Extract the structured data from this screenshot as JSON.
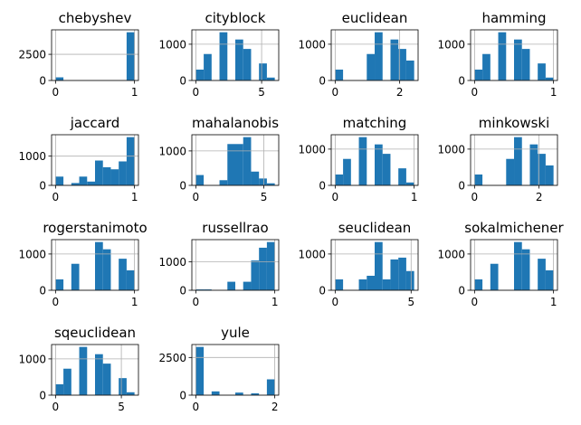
{
  "chart_data": [
    {
      "type": "histogram",
      "title": "chebyshev",
      "bins": [
        0,
        0.1,
        0.2,
        0.3,
        0.4,
        0.5,
        0.6,
        0.7,
        0.8,
        0.9,
        1
      ],
      "values": [
        300,
        0,
        0,
        0,
        0,
        0,
        0,
        0,
        0,
        4610
      ],
      "xlim": [
        -0.05,
        1.05
      ],
      "ylim": [
        0,
        4840.5
      ],
      "xticks": [
        0,
        1
      ],
      "yticks": [
        0,
        2500
      ],
      "grid": true,
      "color": "#1f77b4"
    },
    {
      "type": "histogram",
      "title": "cityblock",
      "bins": [
        0,
        0.6,
        1.2,
        1.8,
        2.4,
        3,
        3.6,
        4.2,
        4.8,
        5.4,
        6
      ],
      "values": [
        300,
        730,
        0,
        1330,
        0,
        1130,
        870,
        0,
        470,
        80
      ],
      "xlim": [
        -0.3,
        6.3
      ],
      "ylim": [
        0,
        1396.5
      ],
      "xticks": [
        0,
        5
      ],
      "yticks": [
        0,
        1000
      ],
      "grid": true,
      "color": "#1f77b4"
    },
    {
      "type": "histogram",
      "title": "euclidean",
      "bins": [
        0,
        0.245,
        0.49,
        0.735,
        0.98,
        1.225,
        1.47,
        1.715,
        1.96,
        2.204,
        2.449
      ],
      "values": [
        300,
        0,
        0,
        0,
        730,
        1330,
        0,
        1130,
        870,
        550
      ],
      "xlim": [
        -0.122,
        2.571
      ],
      "ylim": [
        0,
        1396.5
      ],
      "xticks": [
        0,
        2
      ],
      "yticks": [
        0,
        1000
      ],
      "grid": true,
      "color": "#1f77b4"
    },
    {
      "type": "histogram",
      "title": "hamming",
      "bins": [
        0,
        0.1,
        0.2,
        0.3,
        0.4,
        0.5,
        0.6,
        0.7,
        0.8,
        0.9,
        1
      ],
      "values": [
        300,
        730,
        0,
        1330,
        0,
        1130,
        870,
        0,
        470,
        80
      ],
      "xlim": [
        -0.05,
        1.05
      ],
      "ylim": [
        0,
        1396.5
      ],
      "xticks": [
        0,
        1
      ],
      "yticks": [
        0,
        1000
      ],
      "grid": true,
      "color": "#1f77b4"
    },
    {
      "type": "histogram",
      "title": "jaccard",
      "bins": [
        0,
        0.1,
        0.2,
        0.3,
        0.4,
        0.5,
        0.6,
        0.7,
        0.8,
        0.9,
        1
      ],
      "values": [
        300,
        0,
        80,
        300,
        130,
        850,
        620,
        550,
        820,
        1650
      ],
      "xlim": [
        -0.05,
        1.05
      ],
      "ylim": [
        0,
        1732.5
      ],
      "xticks": [
        0,
        1
      ],
      "yticks": [
        0,
        1000
      ],
      "grid": true,
      "color": "#1f77b4"
    },
    {
      "type": "histogram",
      "title": "mahalanobis",
      "bins": [
        0,
        0.58,
        1.16,
        1.74,
        2.32,
        2.9,
        3.48,
        4.06,
        4.64,
        5.22,
        5.8
      ],
      "values": [
        300,
        0,
        0,
        150,
        1200,
        1200,
        1400,
        400,
        200,
        60
      ],
      "xlim": [
        -0.29,
        6.09
      ],
      "ylim": [
        0,
        1470
      ],
      "xticks": [
        0,
        5
      ],
      "yticks": [
        0,
        1000
      ],
      "grid": true,
      "color": "#1f77b4"
    },
    {
      "type": "histogram",
      "title": "matching",
      "bins": [
        0,
        0.1,
        0.2,
        0.3,
        0.4,
        0.5,
        0.6,
        0.7,
        0.8,
        0.9,
        1
      ],
      "values": [
        300,
        730,
        0,
        1330,
        0,
        1130,
        870,
        0,
        470,
        80
      ],
      "xlim": [
        -0.05,
        1.05
      ],
      "ylim": [
        0,
        1396.5
      ],
      "xticks": [
        0,
        1
      ],
      "yticks": [
        0,
        1000
      ],
      "grid": true,
      "color": "#1f77b4"
    },
    {
      "type": "histogram",
      "title": "minkowski",
      "bins": [
        0,
        0.245,
        0.49,
        0.735,
        0.98,
        1.225,
        1.47,
        1.715,
        1.96,
        2.204,
        2.449
      ],
      "values": [
        300,
        0,
        0,
        0,
        730,
        1330,
        0,
        1130,
        870,
        550
      ],
      "xlim": [
        -0.122,
        2.571
      ],
      "ylim": [
        0,
        1396.5
      ],
      "xticks": [
        0,
        2
      ],
      "yticks": [
        0,
        1000
      ],
      "grid": true,
      "color": "#1f77b4"
    },
    {
      "type": "histogram",
      "title": "rogerstanimoto",
      "bins": [
        0,
        0.1,
        0.2,
        0.3,
        0.4,
        0.5,
        0.6,
        0.7,
        0.8,
        0.9,
        1
      ],
      "values": [
        300,
        0,
        730,
        0,
        0,
        1330,
        1130,
        0,
        870,
        550
      ],
      "xlim": [
        -0.05,
        1.05
      ],
      "ylim": [
        0,
        1396.5
      ],
      "xticks": [
        0,
        1
      ],
      "yticks": [
        0,
        1000
      ],
      "grid": true,
      "color": "#1f77b4"
    },
    {
      "type": "histogram",
      "title": "russellrao",
      "bins": [
        0,
        0.1,
        0.2,
        0.3,
        0.4,
        0.5,
        0.6,
        0.7,
        0.8,
        0.9,
        1
      ],
      "values": [
        30,
        30,
        0,
        0,
        300,
        0,
        300,
        1050,
        1500,
        1700
      ],
      "xlim": [
        -0.05,
        1.05
      ],
      "ylim": [
        0,
        1785
      ],
      "xticks": [
        0,
        1
      ],
      "yticks": [
        0,
        1000
      ],
      "grid": true,
      "color": "#1f77b4"
    },
    {
      "type": "histogram",
      "title": "seuclidean",
      "bins": [
        0,
        0.52,
        1.04,
        1.56,
        2.08,
        2.6,
        3.12,
        3.64,
        4.16,
        4.68,
        5.2
      ],
      "values": [
        300,
        0,
        0,
        300,
        400,
        1330,
        300,
        850,
        900,
        530
      ],
      "xlim": [
        -0.26,
        5.46
      ],
      "ylim": [
        0,
        1396.5
      ],
      "xticks": [
        0,
        5
      ],
      "yticks": [
        0,
        1000
      ],
      "grid": true,
      "color": "#1f77b4"
    },
    {
      "type": "histogram",
      "title": "sokalmichener",
      "bins": [
        0,
        0.1,
        0.2,
        0.3,
        0.4,
        0.5,
        0.6,
        0.7,
        0.8,
        0.9,
        1
      ],
      "values": [
        300,
        0,
        730,
        0,
        0,
        1330,
        1130,
        0,
        870,
        550
      ],
      "xlim": [
        -0.05,
        1.05
      ],
      "ylim": [
        0,
        1396.5
      ],
      "xticks": [
        0,
        1
      ],
      "yticks": [
        0,
        1000
      ],
      "grid": true,
      "color": "#1f77b4"
    },
    {
      "type": "histogram",
      "title": "sqeuclidean",
      "bins": [
        0,
        0.6,
        1.2,
        1.8,
        2.4,
        3,
        3.6,
        4.2,
        4.8,
        5.4,
        6
      ],
      "values": [
        300,
        730,
        0,
        1330,
        0,
        1130,
        870,
        0,
        470,
        80
      ],
      "xlim": [
        -0.3,
        6.3
      ],
      "ylim": [
        0,
        1396.5
      ],
      "xticks": [
        0,
        5
      ],
      "yticks": [
        0,
        1000
      ],
      "grid": true,
      "color": "#1f77b4"
    },
    {
      "type": "histogram",
      "title": "yule",
      "bins": [
        0,
        0.2,
        0.4,
        0.6,
        0.8,
        1,
        1.2,
        1.4,
        1.6,
        1.8,
        2
      ],
      "values": [
        3200,
        0,
        250,
        0,
        0,
        170,
        0,
        120,
        0,
        1050
      ],
      "xlim": [
        -0.1,
        2.1
      ],
      "ylim": [
        0,
        3360
      ],
      "xticks": [
        0,
        2
      ],
      "yticks": [
        0,
        2500
      ],
      "grid": true,
      "color": "#1f77b4"
    }
  ]
}
